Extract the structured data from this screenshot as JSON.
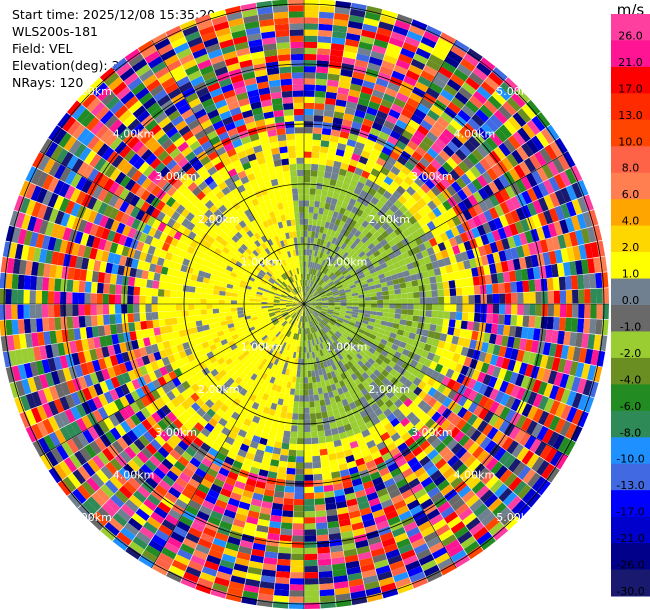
{
  "header": {
    "start_time": "Start time: 2025/12/08 15:35:20",
    "site": "WLS200s-181",
    "field": "Field: VEL",
    "elevation": "Elevation(deg): 35.00",
    "nrays": "NRays: 120"
  },
  "chart_data": {
    "type": "polar-ppi",
    "field": "VEL",
    "unit": "m/s",
    "nrays": 120,
    "elevation_deg": 35.0,
    "range_rings_km": [
      1,
      2,
      3,
      4,
      5
    ],
    "ring_labels": [
      "1.00km",
      "2.00km",
      "3.00km",
      "4.00km",
      "5.00km"
    ],
    "colorbar": {
      "ticks": [
        "26.0",
        "21.0",
        "17.0",
        "13.0",
        "10.0",
        "8.0",
        "6.0",
        "4.0",
        "2.0",
        "1.0",
        "0.0",
        "-1.0",
        "-2.0",
        "-4.0",
        "-6.0",
        "-8.0",
        "-10.0",
        "-13.0",
        "-17.0",
        "-21.0",
        "-26.0",
        "-30.0"
      ],
      "colors": [
        "#ff3fa0",
        "#ff1493",
        "#ff0000",
        "#ff2a00",
        "#ff4500",
        "#ff6347",
        "#ff7f50",
        "#ffa500",
        "#ffd700",
        "#ffff00",
        "#708090",
        "#696969",
        "#9acd32",
        "#6b8e23",
        "#228b22",
        "#2e8b57",
        "#1e90ff",
        "#4169e1",
        "#0000ff",
        "#0000cd",
        "#00008b",
        "#191970"
      ]
    }
  }
}
